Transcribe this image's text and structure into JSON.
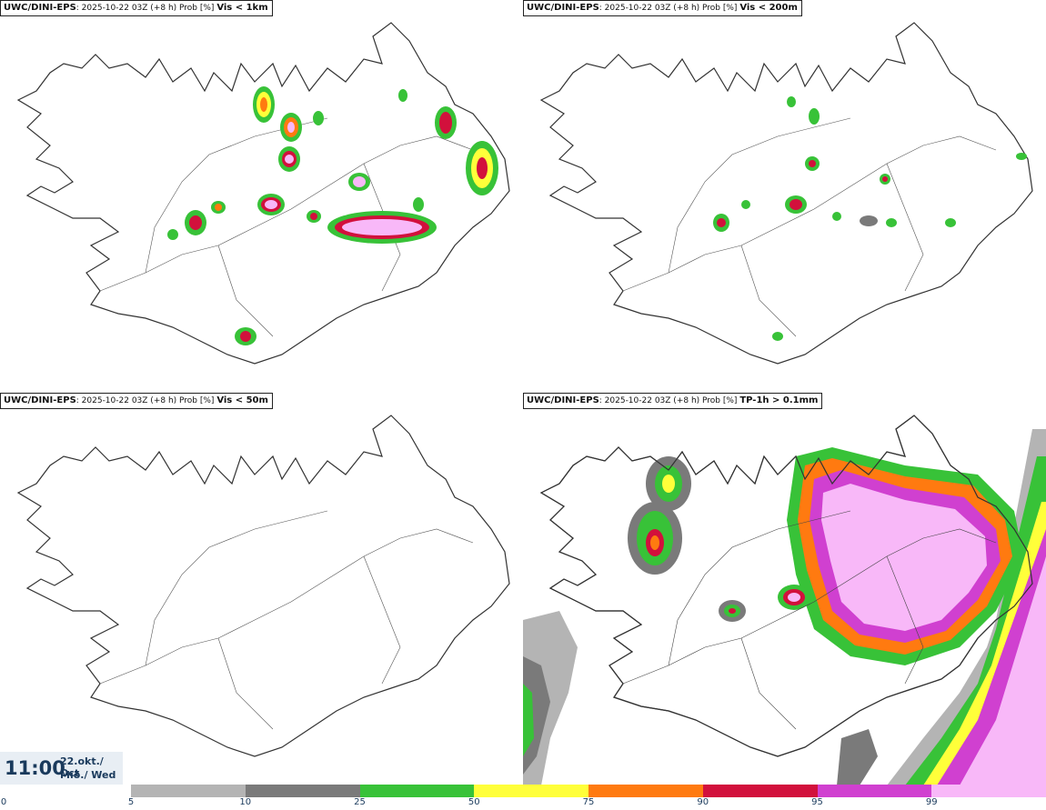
{
  "panels": [
    {
      "source": "UWC/DINI-EPS",
      "meta": ": 2025-10-22 03Z (+8 h) Prob [%] ",
      "variable": "Vis < 1km"
    },
    {
      "source": "UWC/DINI-EPS",
      "meta": ": 2025-10-22 03Z (+8 h) Prob [%] ",
      "variable": "Vis < 200m"
    },
    {
      "source": "UWC/DINI-EPS",
      "meta": ": 2025-10-22 03Z (+8 h) Prob [%] ",
      "variable": "Vis < 50m"
    },
    {
      "source": "UWC/DINI-EPS",
      "meta": ": 2025-10-22 03Z (+8 h) Prob [%] ",
      "variable": "TP-1h > 0.1mm"
    }
  ],
  "valid_time": {
    "time": "11:00",
    "date": "22.okt./ Oct",
    "weekday": "Mið./ Wed"
  },
  "colorbar": {
    "labels": [
      "0",
      "5",
      "10",
      "25",
      "50",
      "75",
      "90",
      "95",
      "99"
    ],
    "colors": [
      "#b4b4b4",
      "#7a7a7a",
      "#38c238",
      "#ffff3a",
      "#ff7a10",
      "#d2103c",
      "#d040d0",
      "#f8b8f8"
    ]
  }
}
